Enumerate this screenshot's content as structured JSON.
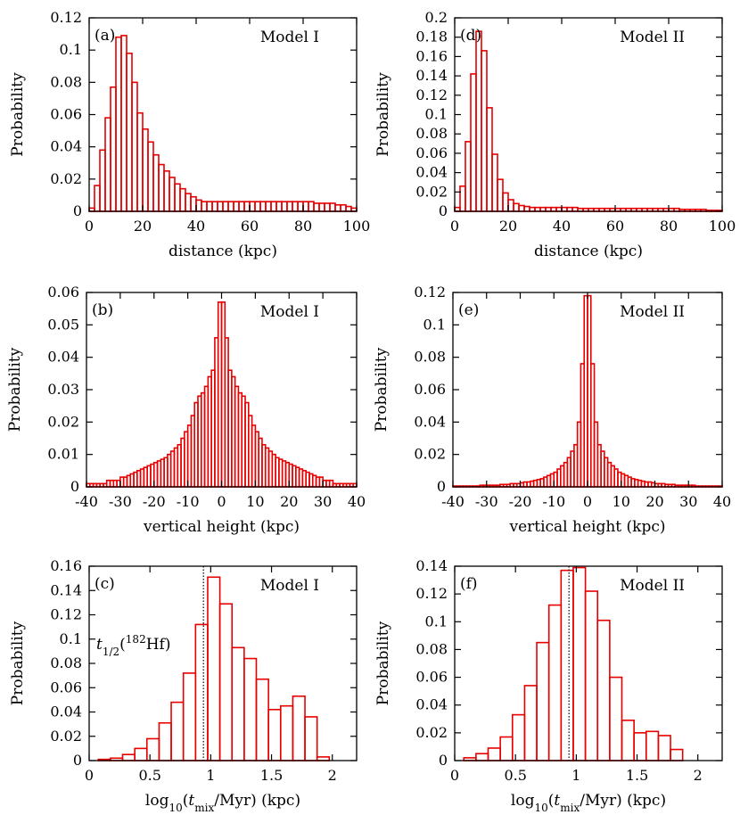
{
  "chart_data": [
    {
      "id": "a",
      "type": "bar",
      "panel_label": "(a)",
      "model": "Model I",
      "xlabel": "distance (kpc)",
      "ylabel": "Probability",
      "xlim": [
        0,
        100
      ],
      "ylim": [
        0,
        0.12
      ],
      "xticks": [
        0,
        20,
        40,
        60,
        80,
        100
      ],
      "xtick_labels": [
        "0",
        "20",
        "40",
        "60",
        "80",
        "100"
      ],
      "yticks": [
        0,
        0.02,
        0.04,
        0.06,
        0.08,
        0.1,
        0.12
      ],
      "ytick_labels": [
        "0",
        "0.02",
        "0.04",
        "0.06",
        "0.08",
        "0.1",
        "0.12"
      ],
      "bin_start": 0,
      "bin_width": 2,
      "values": [
        0.002,
        0.016,
        0.038,
        0.058,
        0.077,
        0.108,
        0.109,
        0.098,
        0.08,
        0.061,
        0.051,
        0.043,
        0.035,
        0.029,
        0.025,
        0.021,
        0.017,
        0.014,
        0.011,
        0.009,
        0.007,
        0.006,
        0.006,
        0.006,
        0.006,
        0.006,
        0.006,
        0.006,
        0.006,
        0.006,
        0.006,
        0.006,
        0.006,
        0.006,
        0.006,
        0.006,
        0.006,
        0.006,
        0.006,
        0.006,
        0.006,
        0.006,
        0.005,
        0.005,
        0.005,
        0.005,
        0.004,
        0.004,
        0.003,
        0.002
      ]
    },
    {
      "id": "d",
      "type": "bar",
      "panel_label": "(d)",
      "model": "Model II",
      "xlabel": "distance (kpc)",
      "ylabel": "Probability",
      "xlim": [
        0,
        100
      ],
      "ylim": [
        0,
        0.2
      ],
      "xticks": [
        0,
        20,
        40,
        60,
        80,
        100
      ],
      "xtick_labels": [
        "0",
        "20",
        "40",
        "60",
        "80",
        "100"
      ],
      "yticks": [
        0,
        0.02,
        0.04,
        0.06,
        0.08,
        0.1,
        0.12,
        0.14,
        0.16,
        0.18,
        0.2
      ],
      "ytick_labels": [
        "0",
        "0.02",
        "0.04",
        "0.06",
        "0.08",
        "0.1",
        "0.12",
        "0.14",
        "0.16",
        "0.18",
        "0.2"
      ],
      "bin_start": 0,
      "bin_width": 2,
      "values": [
        0.004,
        0.026,
        0.072,
        0.142,
        0.186,
        0.166,
        0.107,
        0.059,
        0.033,
        0.019,
        0.012,
        0.008,
        0.006,
        0.005,
        0.004,
        0.004,
        0.004,
        0.004,
        0.004,
        0.004,
        0.004,
        0.004,
        0.004,
        0.003,
        0.003,
        0.003,
        0.003,
        0.003,
        0.003,
        0.003,
        0.003,
        0.003,
        0.003,
        0.003,
        0.003,
        0.003,
        0.003,
        0.003,
        0.003,
        0.003,
        0.003,
        0.003,
        0.002,
        0.002,
        0.002,
        0.002,
        0.002,
        0.001,
        0.001,
        0.001
      ]
    },
    {
      "id": "b",
      "type": "bar",
      "panel_label": "(b)",
      "model": "Model I",
      "xlabel": "vertical height (kpc)",
      "ylabel": "Probability",
      "xlim": [
        -40,
        40
      ],
      "ylim": [
        0,
        0.06
      ],
      "xticks": [
        -40,
        -30,
        -20,
        -10,
        0,
        10,
        20,
        30,
        40
      ],
      "xtick_labels": [
        "-40",
        "-30",
        "-20",
        "-10",
        "0",
        "10",
        "20",
        "30",
        "40"
      ],
      "yticks": [
        0,
        0.01,
        0.02,
        0.03,
        0.04,
        0.05,
        0.06
      ],
      "ytick_labels": [
        "0",
        "0.01",
        "0.02",
        "0.03",
        "0.04",
        "0.05",
        "0.06"
      ],
      "bin_start": -40,
      "bin_width": 1,
      "values": [
        0.001,
        0.001,
        0.001,
        0.001,
        0.001,
        0.001,
        0.002,
        0.002,
        0.002,
        0.002,
        0.003,
        0.003,
        0.0035,
        0.004,
        0.0045,
        0.005,
        0.0055,
        0.006,
        0.0065,
        0.007,
        0.0075,
        0.008,
        0.0085,
        0.009,
        0.01,
        0.011,
        0.012,
        0.013,
        0.015,
        0.017,
        0.019,
        0.022,
        0.026,
        0.028,
        0.029,
        0.031,
        0.034,
        0.036,
        0.046,
        0.057,
        0.057,
        0.046,
        0.036,
        0.034,
        0.031,
        0.029,
        0.028,
        0.026,
        0.022,
        0.019,
        0.017,
        0.015,
        0.013,
        0.012,
        0.011,
        0.01,
        0.009,
        0.0085,
        0.008,
        0.0075,
        0.007,
        0.0065,
        0.006,
        0.0055,
        0.005,
        0.0045,
        0.004,
        0.0035,
        0.003,
        0.003,
        0.002,
        0.002,
        0.002,
        0.001,
        0.001,
        0.001,
        0.001,
        0.001,
        0.001,
        0.001
      ]
    },
    {
      "id": "e",
      "type": "bar",
      "panel_label": "(e)",
      "model": "Model II",
      "xlabel": "vertical height (kpc)",
      "ylabel": "Probability",
      "xlim": [
        -40,
        40
      ],
      "ylim": [
        0,
        0.12
      ],
      "xticks": [
        -40,
        -30,
        -20,
        -10,
        0,
        10,
        20,
        30,
        40
      ],
      "xtick_labels": [
        "-40",
        "-30",
        "-20",
        "-10",
        "0",
        "10",
        "20",
        "30",
        "40"
      ],
      "yticks": [
        0,
        0.02,
        0.04,
        0.06,
        0.08,
        0.1,
        0.12
      ],
      "ytick_labels": [
        "0",
        "0.02",
        "0.04",
        "0.06",
        "0.08",
        "0.1",
        "0.12"
      ],
      "bin_start": -40,
      "bin_width": 1,
      "values": [
        0.0005,
        0.0005,
        0.0005,
        0.0005,
        0.0005,
        0.0005,
        0.0005,
        0.0005,
        0.001,
        0.001,
        0.001,
        0.001,
        0.001,
        0.001,
        0.0015,
        0.0015,
        0.0015,
        0.002,
        0.002,
        0.002,
        0.0025,
        0.003,
        0.003,
        0.0035,
        0.004,
        0.0045,
        0.005,
        0.006,
        0.007,
        0.008,
        0.009,
        0.011,
        0.013,
        0.015,
        0.018,
        0.022,
        0.026,
        0.04,
        0.076,
        0.118,
        0.118,
        0.076,
        0.04,
        0.026,
        0.022,
        0.018,
        0.015,
        0.013,
        0.011,
        0.009,
        0.008,
        0.007,
        0.006,
        0.005,
        0.0045,
        0.004,
        0.0035,
        0.003,
        0.003,
        0.0025,
        0.002,
        0.002,
        0.002,
        0.0015,
        0.0015,
        0.0015,
        0.001,
        0.001,
        0.001,
        0.001,
        0.001,
        0.001,
        0.0005,
        0.0005,
        0.0005,
        0.0005,
        0.0005,
        0.0005,
        0.0005,
        0.0005
      ]
    },
    {
      "id": "c",
      "type": "bar",
      "panel_label": "(c)",
      "model": "Model I",
      "xlabel": "log10(tmix/Myr) (kpc)",
      "ylabel": "Probability",
      "xlim": [
        0,
        2.2
      ],
      "ylim": [
        0,
        0.16
      ],
      "xticks": [
        0,
        0.5,
        1,
        1.5,
        2
      ],
      "xtick_labels": [
        "0",
        "0.5",
        "1",
        "1.5",
        "2"
      ],
      "yticks": [
        0,
        0.02,
        0.04,
        0.06,
        0.08,
        0.1,
        0.12,
        0.14,
        0.16
      ],
      "ytick_labels": [
        "0",
        "0.02",
        "0.04",
        "0.06",
        "0.08",
        "0.1",
        "0.12",
        "0.14",
        "0.16"
      ],
      "bin_start": 0.075,
      "bin_width": 0.1,
      "values": [
        0.001,
        0.002,
        0.005,
        0.01,
        0.018,
        0.031,
        0.048,
        0.072,
        0.112,
        0.151,
        0.129,
        0.093,
        0.084,
        0.067,
        0.042,
        0.045,
        0.053,
        0.036,
        0.003
      ],
      "vline_x": 0.94,
      "annotation": "t1/2(182Hf)"
    },
    {
      "id": "f",
      "type": "bar",
      "panel_label": "(f)",
      "model": "Model II",
      "xlabel": "log10(tmix/Myr) (kpc)",
      "ylabel": "Probability",
      "xlim": [
        0,
        2.2
      ],
      "ylim": [
        0,
        0.14
      ],
      "xticks": [
        0,
        0.5,
        1,
        1.5,
        2
      ],
      "xtick_labels": [
        "0",
        "0.5",
        "1",
        "1.5",
        "2"
      ],
      "yticks": [
        0,
        0.02,
        0.04,
        0.06,
        0.08,
        0.1,
        0.12,
        0.14
      ],
      "ytick_labels": [
        "0",
        "0.02",
        "0.04",
        "0.06",
        "0.08",
        "0.1",
        "0.12",
        "0.14"
      ],
      "bin_start": 0.075,
      "bin_width": 0.1,
      "values": [
        0.002,
        0.005,
        0.009,
        0.017,
        0.033,
        0.054,
        0.085,
        0.112,
        0.137,
        0.139,
        0.122,
        0.101,
        0.06,
        0.029,
        0.02,
        0.021,
        0.018,
        0.008
      ],
      "vline_x": 0.94
    }
  ]
}
